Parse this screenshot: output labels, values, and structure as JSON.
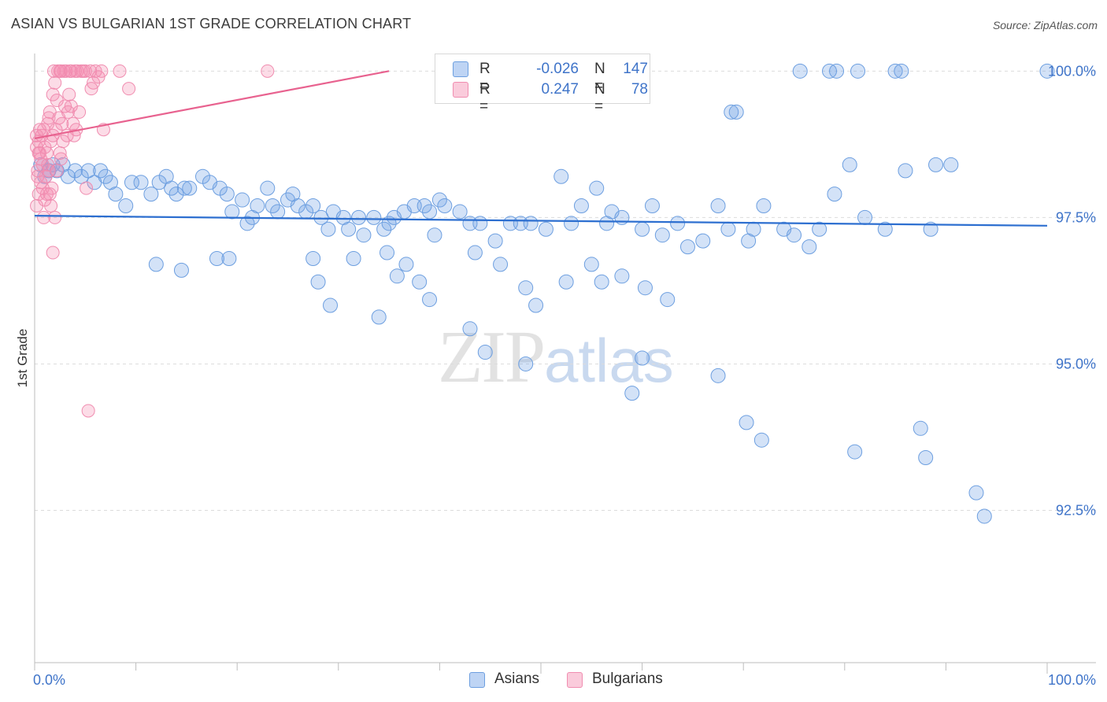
{
  "title": "ASIAN VS BULGARIAN 1ST GRADE CORRELATION CHART",
  "source": "Source: ZipAtlas.com",
  "watermark": {
    "zip": "ZIP",
    "atlas": "atlas"
  },
  "colors": {
    "asians_fill": "rgba(110,160,230,0.30)",
    "asians_stroke": "#6d9fe0",
    "asians_line": "#2d6fd0",
    "bulgarians_fill": "rgba(245,140,175,0.30)",
    "bulgarians_stroke": "#f08db0",
    "bulgarians_line": "#e8628f",
    "tick_text": "#3f74c9"
  },
  "legend": {
    "rows": [
      {
        "r_label": "R =",
        "r_value": "-0.026",
        "n_label": "N =",
        "n_value": "147"
      },
      {
        "r_label": "R =",
        "r_value": "0.247",
        "n_label": "N =",
        "n_value": "78"
      }
    ]
  },
  "bottom_legend": {
    "asians": "Asians",
    "bulgarians": "Bulgarians"
  },
  "chart_data": {
    "type": "scatter",
    "title": "ASIAN VS BULGARIAN 1ST GRADE CORRELATION CHART",
    "xlabel": "",
    "ylabel": "1st Grade",
    "xlim": [
      0,
      100
    ],
    "ylim": [
      89.9,
      100.3
    ],
    "x_tick_labels": [
      "0.0%",
      "100.0%"
    ],
    "y_ticks": [
      92.5,
      95.0,
      97.5,
      100.0
    ],
    "y_tick_labels": [
      "92.5%",
      "95.0%",
      "97.5%",
      "100.0%"
    ],
    "grid": true,
    "series": [
      {
        "name": "Asians",
        "r": -0.026,
        "n": 147,
        "trend": {
          "x": [
            0,
            100
          ],
          "y": [
            97.53,
            97.36
          ]
        },
        "points": [
          [
            0.6,
            98.4
          ],
          [
            1.0,
            98.2
          ],
          [
            1.4,
            98.3
          ],
          [
            1.8,
            98.4
          ],
          [
            2.2,
            98.3
          ],
          [
            2.8,
            98.4
          ],
          [
            3.3,
            98.2
          ],
          [
            4.0,
            98.3
          ],
          [
            4.6,
            98.2
          ],
          [
            5.3,
            98.3
          ],
          [
            5.9,
            98.1
          ],
          [
            6.5,
            98.3
          ],
          [
            7.0,
            98.2
          ],
          [
            7.5,
            98.1
          ],
          [
            8.0,
            97.9
          ],
          [
            9.0,
            97.7
          ],
          [
            9.6,
            98.1
          ],
          [
            10.5,
            98.1
          ],
          [
            11.5,
            97.9
          ],
          [
            12.3,
            98.1
          ],
          [
            13.0,
            98.2
          ],
          [
            13.5,
            98.0
          ],
          [
            14.0,
            97.9
          ],
          [
            14.8,
            98.0
          ],
          [
            15.3,
            98.0
          ],
          [
            16.6,
            98.2
          ],
          [
            17.3,
            98.1
          ],
          [
            18.3,
            98.0
          ],
          [
            19.0,
            97.9
          ],
          [
            19.5,
            97.6
          ],
          [
            20.5,
            97.8
          ],
          [
            21.0,
            97.4
          ],
          [
            21.5,
            97.5
          ],
          [
            22.0,
            97.7
          ],
          [
            23.0,
            98.0
          ],
          [
            23.5,
            97.7
          ],
          [
            24.0,
            97.6
          ],
          [
            25.0,
            97.8
          ],
          [
            25.5,
            97.9
          ],
          [
            26.0,
            97.7
          ],
          [
            26.8,
            97.6
          ],
          [
            27.5,
            97.7
          ],
          [
            28.3,
            97.5
          ],
          [
            29.0,
            97.3
          ],
          [
            29.5,
            97.6
          ],
          [
            30.5,
            97.5
          ],
          [
            31.0,
            97.3
          ],
          [
            32.0,
            97.5
          ],
          [
            32.5,
            97.2
          ],
          [
            33.5,
            97.5
          ],
          [
            34.5,
            97.3
          ],
          [
            35.0,
            97.4
          ],
          [
            35.5,
            97.5
          ],
          [
            36.5,
            97.6
          ],
          [
            37.5,
            97.7
          ],
          [
            38.5,
            97.7
          ],
          [
            39.0,
            97.6
          ],
          [
            39.5,
            97.2
          ],
          [
            40.0,
            97.8
          ],
          [
            40.5,
            97.7
          ],
          [
            42.0,
            97.6
          ],
          [
            43.0,
            97.4
          ],
          [
            44.0,
            97.4
          ],
          [
            45.5,
            97.1
          ],
          [
            47.0,
            97.4
          ],
          [
            48.0,
            97.4
          ],
          [
            49.0,
            97.4
          ],
          [
            50.5,
            97.3
          ],
          [
            52.0,
            98.2
          ],
          [
            53.0,
            97.4
          ],
          [
            54.0,
            97.7
          ],
          [
            55.5,
            98.0
          ],
          [
            56.5,
            97.4
          ],
          [
            57.0,
            97.6
          ],
          [
            58.0,
            97.5
          ],
          [
            60.0,
            97.3
          ],
          [
            61.0,
            97.7
          ],
          [
            62.0,
            97.2
          ],
          [
            63.5,
            97.4
          ],
          [
            64.5,
            97.0
          ],
          [
            66.0,
            97.1
          ],
          [
            67.5,
            97.7
          ],
          [
            68.5,
            97.3
          ],
          [
            70.5,
            97.1
          ],
          [
            71.0,
            97.3
          ],
          [
            72.0,
            97.7
          ],
          [
            74.0,
            97.3
          ],
          [
            75.0,
            97.2
          ],
          [
            76.5,
            97.0
          ],
          [
            77.5,
            97.3
          ],
          [
            79.0,
            97.9
          ],
          [
            80.5,
            98.4
          ],
          [
            82.0,
            97.5
          ],
          [
            84.0,
            97.3
          ],
          [
            86.0,
            98.3
          ],
          [
            88.5,
            97.3
          ],
          [
            89.0,
            98.4
          ],
          [
            90.5,
            98.4
          ],
          [
            12.0,
            96.7
          ],
          [
            14.5,
            96.6
          ],
          [
            18.0,
            96.8
          ],
          [
            19.2,
            96.8
          ],
          [
            27.5,
            96.8
          ],
          [
            31.5,
            96.8
          ],
          [
            28.0,
            96.4
          ],
          [
            29.2,
            96.0
          ],
          [
            34.8,
            96.9
          ],
          [
            35.8,
            96.5
          ],
          [
            36.7,
            96.7
          ],
          [
            38.0,
            96.4
          ],
          [
            39.0,
            96.1
          ],
          [
            43.5,
            96.9
          ],
          [
            46.0,
            96.7
          ],
          [
            48.5,
            96.3
          ],
          [
            49.5,
            96.0
          ],
          [
            52.5,
            96.4
          ],
          [
            55.0,
            96.7
          ],
          [
            56.0,
            96.4
          ],
          [
            58.0,
            96.5
          ],
          [
            60.3,
            96.3
          ],
          [
            62.5,
            96.1
          ],
          [
            34.0,
            95.8
          ],
          [
            43.0,
            95.6
          ],
          [
            44.5,
            95.2
          ],
          [
            48.5,
            95.0
          ],
          [
            59.0,
            94.5
          ],
          [
            60.0,
            95.1
          ],
          [
            67.5,
            94.8
          ],
          [
            70.3,
            94.0
          ],
          [
            71.8,
            93.7
          ],
          [
            81.0,
            93.5
          ],
          [
            87.5,
            93.9
          ],
          [
            88.0,
            93.4
          ],
          [
            93.0,
            92.8
          ],
          [
            93.8,
            92.4
          ],
          [
            75.6,
            100.0
          ],
          [
            78.5,
            100.0
          ],
          [
            79.2,
            100.0
          ],
          [
            81.3,
            100.0
          ],
          [
            85.0,
            100.0
          ],
          [
            85.6,
            100.0
          ],
          [
            100.0,
            100.0
          ],
          [
            68.8,
            99.3
          ],
          [
            69.3,
            99.3
          ]
        ]
      },
      {
        "name": "Bulgarians",
        "r": 0.247,
        "n": 78,
        "trend": {
          "x": [
            0,
            35
          ],
          "y": [
            98.85,
            100.0
          ]
        },
        "points": [
          [
            0.2,
            98.7
          ],
          [
            0.4,
            98.8
          ],
          [
            0.6,
            98.5
          ],
          [
            0.3,
            98.3
          ],
          [
            0.5,
            98.6
          ],
          [
            0.8,
            98.4
          ],
          [
            1.0,
            98.7
          ],
          [
            0.7,
            98.9
          ],
          [
            1.2,
            98.6
          ],
          [
            1.4,
            98.3
          ],
          [
            1.6,
            98.8
          ],
          [
            0.9,
            99.0
          ],
          [
            1.3,
            99.1
          ],
          [
            1.8,
            98.9
          ],
          [
            2.1,
            99.0
          ],
          [
            1.5,
            99.3
          ],
          [
            2.4,
            99.2
          ],
          [
            2.7,
            99.1
          ],
          [
            3.0,
            99.4
          ],
          [
            2.2,
            99.5
          ],
          [
            3.3,
            99.3
          ],
          [
            3.6,
            99.4
          ],
          [
            2.0,
            99.8
          ],
          [
            1.8,
            99.6
          ],
          [
            2.6,
            100.0
          ],
          [
            3.1,
            100.0
          ],
          [
            3.6,
            100.0
          ],
          [
            4.2,
            100.0
          ],
          [
            5.0,
            100.0
          ],
          [
            5.5,
            100.0
          ],
          [
            6.0,
            100.0
          ],
          [
            2.3,
            100.0
          ],
          [
            2.9,
            100.0
          ],
          [
            4.6,
            100.0
          ],
          [
            5.8,
            99.8
          ],
          [
            6.3,
            99.9
          ],
          [
            1.9,
            100.0
          ],
          [
            2.5,
            100.0
          ],
          [
            3.5,
            100.0
          ],
          [
            4.0,
            100.0
          ],
          [
            8.4,
            100.0
          ],
          [
            9.3,
            99.7
          ],
          [
            23.0,
            100.0
          ],
          [
            0.2,
            97.7
          ],
          [
            0.9,
            97.5
          ],
          [
            1.2,
            97.9
          ],
          [
            1.6,
            97.7
          ],
          [
            2.0,
            97.5
          ],
          [
            1.0,
            97.8
          ],
          [
            5.1,
            98.0
          ],
          [
            1.8,
            96.9
          ],
          [
            0.4,
            97.9
          ],
          [
            5.3,
            94.2
          ],
          [
            0.3,
            98.2
          ],
          [
            0.6,
            98.1
          ],
          [
            1.1,
            98.2
          ],
          [
            1.7,
            98.0
          ],
          [
            0.5,
            99.0
          ],
          [
            1.4,
            99.2
          ],
          [
            2.8,
            98.8
          ],
          [
            3.8,
            99.1
          ],
          [
            4.4,
            99.3
          ],
          [
            3.2,
            98.9
          ],
          [
            6.8,
            99.0
          ],
          [
            0.8,
            98.0
          ],
          [
            1.3,
            98.4
          ],
          [
            2.5,
            98.6
          ],
          [
            4.1,
            99.0
          ],
          [
            3.4,
            99.6
          ],
          [
            2.2,
            98.3
          ],
          [
            0.2,
            98.9
          ],
          [
            1.5,
            97.9
          ],
          [
            2.6,
            98.5
          ],
          [
            3.9,
            98.9
          ],
          [
            5.6,
            99.7
          ],
          [
            4.8,
            100.0
          ],
          [
            6.6,
            100.0
          ],
          [
            0.4,
            98.6
          ]
        ]
      }
    ]
  }
}
